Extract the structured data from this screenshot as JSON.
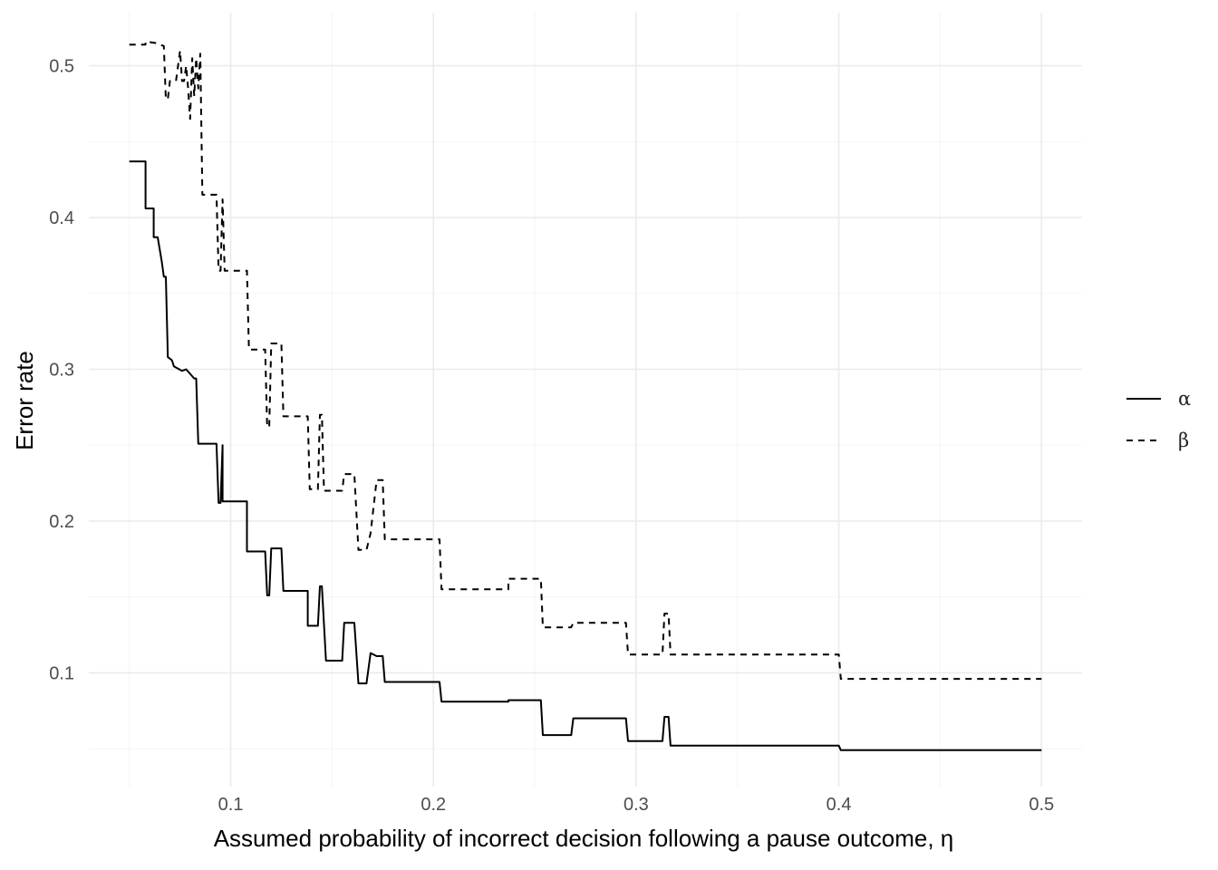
{
  "chart_data": {
    "type": "line",
    "title": "",
    "xlabel": "Assumed probability of incorrect decision following a pause outcome, η",
    "ylabel": "Error rate",
    "xlim": [
      0.03,
      0.52
    ],
    "ylim": [
      0.025,
      0.535
    ],
    "x_ticks": [
      0.1,
      0.2,
      0.3,
      0.4,
      0.5
    ],
    "x_tick_labels": [
      "0.1",
      "0.2",
      "0.3",
      "0.4",
      "0.5"
    ],
    "y_ticks": [
      0.1,
      0.2,
      0.3,
      0.4,
      0.5
    ],
    "y_tick_labels": [
      "0.1",
      "0.2",
      "0.3",
      "0.4",
      "0.5"
    ],
    "grid": true,
    "legend_position": "right",
    "series": [
      {
        "name": "α",
        "line_style": "solid",
        "color": "#000000",
        "points": [
          [
            0.05,
            0.437
          ],
          [
            0.058,
            0.437
          ],
          [
            0.058,
            0.406
          ],
          [
            0.062,
            0.406
          ],
          [
            0.062,
            0.387
          ],
          [
            0.064,
            0.387
          ],
          [
            0.066,
            0.371
          ],
          [
            0.067,
            0.361
          ],
          [
            0.068,
            0.361
          ],
          [
            0.069,
            0.308
          ],
          [
            0.071,
            0.306
          ],
          [
            0.072,
            0.302
          ],
          [
            0.076,
            0.299
          ],
          [
            0.078,
            0.3
          ],
          [
            0.08,
            0.297
          ],
          [
            0.082,
            0.294
          ],
          [
            0.083,
            0.294
          ],
          [
            0.084,
            0.251
          ],
          [
            0.093,
            0.251
          ],
          [
            0.094,
            0.212
          ],
          [
            0.095,
            0.212
          ],
          [
            0.096,
            0.25
          ],
          [
            0.096,
            0.213
          ],
          [
            0.108,
            0.213
          ],
          [
            0.108,
            0.18
          ],
          [
            0.117,
            0.18
          ],
          [
            0.118,
            0.151
          ],
          [
            0.119,
            0.151
          ],
          [
            0.12,
            0.182
          ],
          [
            0.125,
            0.182
          ],
          [
            0.126,
            0.154
          ],
          [
            0.138,
            0.154
          ],
          [
            0.138,
            0.131
          ],
          [
            0.143,
            0.131
          ],
          [
            0.144,
            0.157
          ],
          [
            0.145,
            0.157
          ],
          [
            0.147,
            0.108
          ],
          [
            0.155,
            0.108
          ],
          [
            0.156,
            0.133
          ],
          [
            0.161,
            0.133
          ],
          [
            0.163,
            0.093
          ],
          [
            0.167,
            0.093
          ],
          [
            0.169,
            0.113
          ],
          [
            0.172,
            0.111
          ],
          [
            0.175,
            0.111
          ],
          [
            0.176,
            0.094
          ],
          [
            0.203,
            0.094
          ],
          [
            0.204,
            0.081
          ],
          [
            0.237,
            0.081
          ],
          [
            0.237,
            0.082
          ],
          [
            0.253,
            0.082
          ],
          [
            0.254,
            0.059
          ],
          [
            0.268,
            0.059
          ],
          [
            0.269,
            0.07
          ],
          [
            0.295,
            0.07
          ],
          [
            0.296,
            0.055
          ],
          [
            0.313,
            0.055
          ],
          [
            0.314,
            0.071
          ],
          [
            0.316,
            0.071
          ],
          [
            0.317,
            0.052
          ],
          [
            0.4,
            0.052
          ],
          [
            0.401,
            0.049
          ],
          [
            0.5,
            0.049
          ]
        ]
      },
      {
        "name": "β",
        "line_style": "dashed",
        "color": "#000000",
        "points": [
          [
            0.05,
            0.514
          ],
          [
            0.058,
            0.514
          ],
          [
            0.058,
            0.516
          ],
          [
            0.063,
            0.515
          ],
          [
            0.067,
            0.513
          ],
          [
            0.068,
            0.478
          ],
          [
            0.069,
            0.478
          ],
          [
            0.07,
            0.49
          ],
          [
            0.073,
            0.49
          ],
          [
            0.075,
            0.51
          ],
          [
            0.076,
            0.49
          ],
          [
            0.077,
            0.49
          ],
          [
            0.078,
            0.5
          ],
          [
            0.079,
            0.485
          ],
          [
            0.08,
            0.465
          ],
          [
            0.081,
            0.505
          ],
          [
            0.082,
            0.48
          ],
          [
            0.083,
            0.505
          ],
          [
            0.084,
            0.485
          ],
          [
            0.085,
            0.508
          ],
          [
            0.086,
            0.415
          ],
          [
            0.093,
            0.415
          ],
          [
            0.094,
            0.365
          ],
          [
            0.095,
            0.365
          ],
          [
            0.096,
            0.412
          ],
          [
            0.097,
            0.365
          ],
          [
            0.108,
            0.365
          ],
          [
            0.109,
            0.313
          ],
          [
            0.117,
            0.313
          ],
          [
            0.118,
            0.262
          ],
          [
            0.119,
            0.262
          ],
          [
            0.12,
            0.317
          ],
          [
            0.125,
            0.317
          ],
          [
            0.126,
            0.269
          ],
          [
            0.138,
            0.269
          ],
          [
            0.139,
            0.221
          ],
          [
            0.143,
            0.221
          ],
          [
            0.144,
            0.27
          ],
          [
            0.145,
            0.27
          ],
          [
            0.146,
            0.22
          ],
          [
            0.155,
            0.22
          ],
          [
            0.156,
            0.231
          ],
          [
            0.161,
            0.231
          ],
          [
            0.163,
            0.181
          ],
          [
            0.167,
            0.181
          ],
          [
            0.169,
            0.192
          ],
          [
            0.172,
            0.227
          ],
          [
            0.175,
            0.227
          ],
          [
            0.176,
            0.188
          ],
          [
            0.203,
            0.188
          ],
          [
            0.204,
            0.155
          ],
          [
            0.237,
            0.155
          ],
          [
            0.237,
            0.162
          ],
          [
            0.253,
            0.162
          ],
          [
            0.254,
            0.13
          ],
          [
            0.268,
            0.13
          ],
          [
            0.269,
            0.133
          ],
          [
            0.295,
            0.133
          ],
          [
            0.296,
            0.112
          ],
          [
            0.313,
            0.112
          ],
          [
            0.314,
            0.139
          ],
          [
            0.316,
            0.139
          ],
          [
            0.317,
            0.112
          ],
          [
            0.4,
            0.112
          ],
          [
            0.401,
            0.096
          ],
          [
            0.5,
            0.096
          ]
        ]
      }
    ]
  }
}
